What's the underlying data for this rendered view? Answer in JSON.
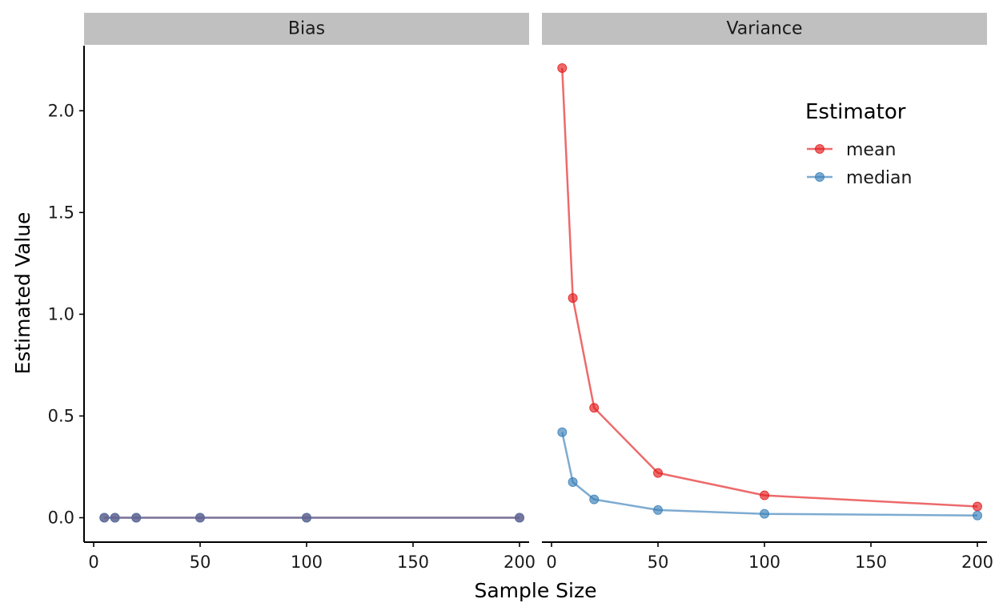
{
  "chart_data": {
    "type": "line",
    "facets": [
      "Bias",
      "Variance"
    ],
    "x": [
      5,
      10,
      20,
      50,
      100,
      200
    ],
    "xlabel": "Sample Size",
    "ylabel": "Estimated Value",
    "xlim": [
      0,
      200
    ],
    "ylim": [
      -0.12,
      2.32
    ],
    "x_ticks": [
      0,
      50,
      100,
      150,
      200
    ],
    "y_ticks": [
      0.0,
      0.5,
      1.0,
      1.5,
      2.0
    ],
    "x_tick_labels": [
      "0",
      "50",
      "100",
      "150",
      "200"
    ],
    "y_tick_labels": [
      "0.0",
      "0.5",
      "1.0",
      "1.5",
      "2.0"
    ],
    "grid": false,
    "legend": {
      "title": "Estimator",
      "placement": "top-right",
      "entries": [
        "mean",
        "median"
      ]
    },
    "colors": {
      "mean": "#e41a1c",
      "median": "#377eb8",
      "strip": "#c0c0c0"
    },
    "series": [
      {
        "name": "mean",
        "values": {
          "Bias": [
            0.0,
            0.0,
            0.0,
            0.0,
            0.0,
            0.0
          ],
          "Variance": [
            2.21,
            1.08,
            0.54,
            0.22,
            0.11,
            0.055
          ]
        }
      },
      {
        "name": "median",
        "values": {
          "Bias": [
            0.0,
            0.0,
            0.0,
            0.0,
            0.0,
            0.0
          ],
          "Variance": [
            0.42,
            0.175,
            0.09,
            0.038,
            0.019,
            0.011
          ]
        }
      }
    ]
  }
}
